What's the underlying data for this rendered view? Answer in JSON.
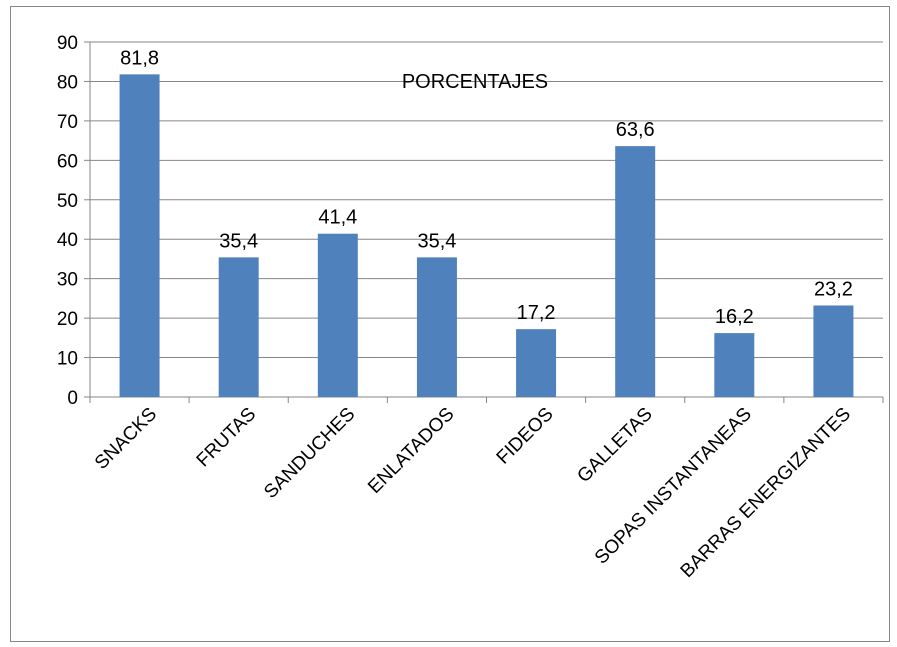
{
  "chart_data": {
    "type": "bar",
    "title": "PORCENTAJES",
    "categories": [
      "SNACKS",
      "FRUTAS",
      "SANDUCHES",
      "ENLATADOS",
      "FIDEOS",
      "GALLETAS",
      "SOPAS INSTANTANEAS",
      "BARRAS ENERGIZANTES"
    ],
    "values": [
      81.8,
      35.4,
      41.4,
      35.4,
      17.2,
      63.6,
      16.2,
      23.2
    ],
    "data_labels": [
      "81,8",
      "35,4",
      "41,4",
      "35,4",
      "17,2",
      "63,6",
      "16,2",
      "23,2"
    ],
    "yticks": [
      "0",
      "10",
      "20",
      "30",
      "40",
      "50",
      "60",
      "70",
      "80",
      "90"
    ],
    "ylim": [
      0,
      90
    ],
    "grid": true,
    "legend": "none",
    "bar_color": "#4f81bd",
    "grid_color": "#868686"
  }
}
